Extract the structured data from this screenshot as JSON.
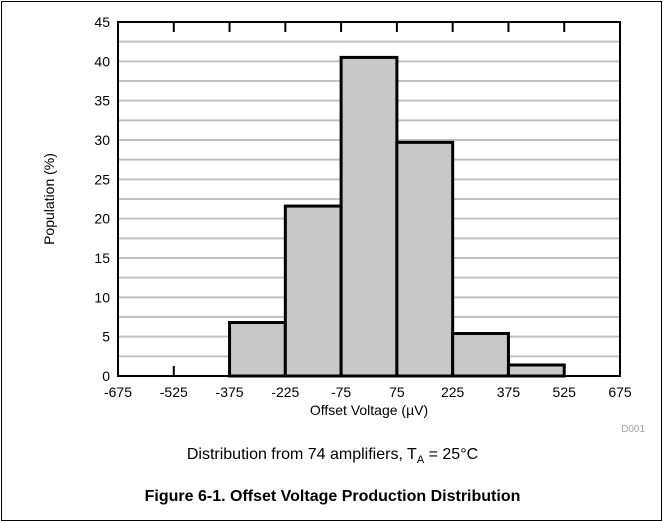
{
  "chart_data": {
    "type": "bar",
    "histogram": true,
    "bin_edges": [
      -675,
      -525,
      -375,
      -225,
      -75,
      75,
      225,
      375,
      525,
      675
    ],
    "x_tick_labels": [
      "-675",
      "-525",
      "-375",
      "-225",
      "-75",
      "75",
      "225",
      "375",
      "525",
      "675"
    ],
    "values": [
      0,
      0,
      6.8,
      21.6,
      40.5,
      29.7,
      5.4,
      1.4,
      0
    ],
    "xlabel": "Offset Voltage (µV)",
    "ylabel": "Population (%)",
    "ylim": [
      0,
      45
    ],
    "y_ticks": [
      0,
      5,
      10,
      15,
      20,
      25,
      30,
      35,
      40,
      45
    ],
    "grid": true,
    "bar_color": "#c8c8c8",
    "grid_color": "#c0c0c0",
    "code": "D001"
  },
  "caption": {
    "text_before": "Distribution from 74 amplifiers, T",
    "subscript": "A",
    "text_after": " = 25°C"
  },
  "figure_title": "Figure 6-1. Offset Voltage Production Distribution"
}
